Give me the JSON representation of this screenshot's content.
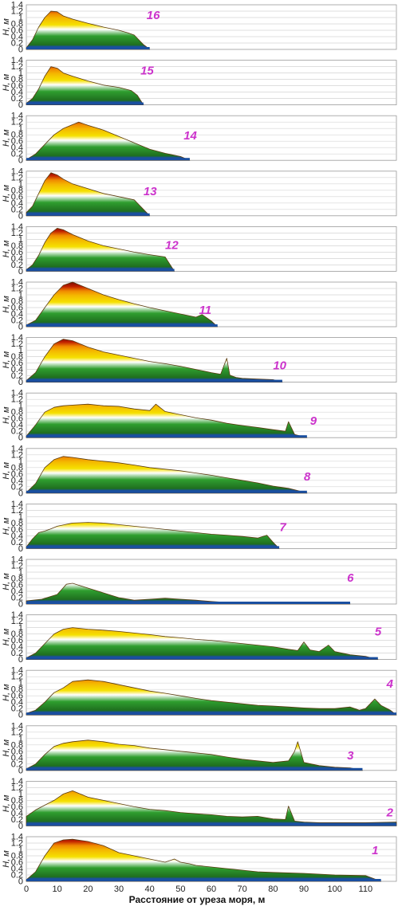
{
  "figure": {
    "x_axis_title": "Расстояние от уреза моря, м",
    "y_axis_title": "H, м",
    "label_color": "#cc33cc",
    "fill_colors": {
      "base_blue": "#1a4fa0",
      "dark_green": "#1f6e1f",
      "green": "#2f9e2f",
      "light_green": "#9fd64f",
      "yellow": "#f5e000",
      "orange": "#f08a00",
      "red": "#c02000",
      "dark_red": "#7a0a00",
      "outline": "#5a3a10"
    }
  },
  "chart_data": {
    "type": "area",
    "x_ticks": [
      "0",
      "10",
      "20",
      "30",
      "40",
      "50",
      "60",
      "70",
      "80",
      "90",
      "100",
      "110"
    ],
    "y_ticks": [
      "0",
      "0.2",
      "0.4",
      "0.6",
      "0.8",
      "1",
      "1.2",
      "1.4"
    ],
    "xlim": [
      0,
      120
    ],
    "ylim": [
      0,
      1.4
    ],
    "grid": true,
    "profiles": [
      {
        "label": "16",
        "x": [
          0,
          2,
          4,
          6,
          8,
          10,
          12,
          15,
          20,
          25,
          30,
          33,
          35,
          38,
          40
        ],
        "h": [
          0.05,
          0.3,
          0.7,
          1.0,
          1.2,
          1.18,
          1.05,
          0.95,
          0.82,
          0.7,
          0.6,
          0.52,
          0.45,
          0.15,
          0.0
        ]
      },
      {
        "label": "15",
        "x": [
          0,
          2,
          4,
          6,
          8,
          10,
          12,
          15,
          20,
          25,
          30,
          34,
          36,
          38
        ],
        "h": [
          0.05,
          0.2,
          0.5,
          0.9,
          1.2,
          1.15,
          1.0,
          0.9,
          0.75,
          0.62,
          0.55,
          0.45,
          0.3,
          0.0
        ]
      },
      {
        "label": "14",
        "x": [
          0,
          3,
          6,
          9,
          12,
          15,
          17,
          20,
          25,
          30,
          35,
          40,
          45,
          50,
          53
        ],
        "h": [
          0.02,
          0.2,
          0.5,
          0.8,
          1.0,
          1.12,
          1.2,
          1.1,
          0.95,
          0.75,
          0.55,
          0.35,
          0.22,
          0.12,
          0.0
        ]
      },
      {
        "label": "13",
        "x": [
          0,
          2,
          4,
          6,
          8,
          10,
          12,
          15,
          20,
          25,
          30,
          35,
          40
        ],
        "h": [
          0.1,
          0.3,
          0.7,
          1.1,
          1.35,
          1.28,
          1.15,
          1.0,
          0.85,
          0.7,
          0.6,
          0.5,
          0.0
        ]
      },
      {
        "label": "12",
        "x": [
          0,
          2,
          4,
          6,
          8,
          10,
          12,
          15,
          20,
          25,
          30,
          35,
          40,
          45,
          48
        ],
        "h": [
          0.05,
          0.2,
          0.5,
          0.9,
          1.2,
          1.35,
          1.3,
          1.15,
          0.95,
          0.8,
          0.7,
          0.6,
          0.52,
          0.45,
          0.0
        ]
      },
      {
        "label": "11",
        "x": [
          0,
          3,
          6,
          9,
          12,
          15,
          20,
          25,
          30,
          35,
          40,
          45,
          50,
          55,
          57,
          60,
          62
        ],
        "h": [
          0.05,
          0.2,
          0.6,
          1.0,
          1.3,
          1.4,
          1.2,
          1.0,
          0.85,
          0.72,
          0.6,
          0.5,
          0.4,
          0.3,
          0.38,
          0.18,
          0.0
        ]
      },
      {
        "label": "10",
        "x": [
          0,
          3,
          6,
          9,
          12,
          15,
          20,
          25,
          30,
          35,
          40,
          45,
          50,
          55,
          60,
          63,
          65,
          66,
          68,
          70,
          75,
          80,
          83
        ],
        "h": [
          0.05,
          0.3,
          0.8,
          1.2,
          1.35,
          1.3,
          1.1,
          0.95,
          0.85,
          0.75,
          0.65,
          0.58,
          0.5,
          0.4,
          0.3,
          0.25,
          0.75,
          0.22,
          0.15,
          0.12,
          0.1,
          0.08,
          0.0
        ]
      },
      {
        "label": "9",
        "x": [
          0,
          3,
          6,
          9,
          12,
          15,
          20,
          25,
          30,
          35,
          40,
          42,
          45,
          50,
          55,
          60,
          65,
          70,
          75,
          80,
          84,
          85,
          87,
          91
        ],
        "h": [
          0.05,
          0.4,
          0.8,
          0.95,
          1.0,
          1.02,
          1.05,
          1.0,
          0.98,
          0.9,
          0.85,
          1.05,
          0.82,
          0.72,
          0.62,
          0.55,
          0.45,
          0.38,
          0.32,
          0.25,
          0.2,
          0.5,
          0.1,
          0.0
        ]
      },
      {
        "label": "8",
        "x": [
          0,
          3,
          6,
          9,
          12,
          15,
          20,
          25,
          30,
          35,
          40,
          45,
          50,
          55,
          60,
          65,
          70,
          75,
          80,
          85,
          88,
          91
        ],
        "h": [
          0.02,
          0.3,
          0.8,
          1.05,
          1.15,
          1.12,
          1.05,
          1.0,
          0.95,
          0.88,
          0.8,
          0.75,
          0.7,
          0.63,
          0.56,
          0.48,
          0.4,
          0.32,
          0.22,
          0.15,
          0.08,
          0.0
        ]
      },
      {
        "label": "7",
        "x": [
          0,
          2,
          4,
          6,
          8,
          10,
          15,
          20,
          25,
          30,
          35,
          40,
          45,
          50,
          55,
          60,
          65,
          70,
          75,
          78,
          80,
          82
        ],
        "h": [
          0.05,
          0.3,
          0.5,
          0.55,
          0.62,
          0.7,
          0.8,
          0.82,
          0.8,
          0.75,
          0.7,
          0.65,
          0.6,
          0.55,
          0.5,
          0.45,
          0.42,
          0.38,
          0.33,
          0.42,
          0.2,
          0.0
        ]
      },
      {
        "label": "6",
        "x": [
          0,
          5,
          10,
          13,
          15,
          20,
          25,
          30,
          35,
          40,
          45,
          50,
          55,
          60,
          65,
          70,
          80,
          90,
          100,
          105
        ],
        "h": [
          0.1,
          0.15,
          0.3,
          0.62,
          0.65,
          0.5,
          0.35,
          0.2,
          0.12,
          0.15,
          0.18,
          0.15,
          0.12,
          0.08,
          0.05,
          0.05,
          0.04,
          0.05,
          0.05,
          0.0
        ]
      },
      {
        "label": "5",
        "x": [
          0,
          3,
          6,
          9,
          12,
          15,
          20,
          25,
          30,
          35,
          40,
          45,
          50,
          55,
          60,
          65,
          70,
          75,
          80,
          85,
          88,
          90,
          92,
          95,
          98,
          100,
          105,
          110,
          114
        ],
        "h": [
          0.05,
          0.2,
          0.5,
          0.8,
          0.95,
          1.0,
          0.95,
          0.92,
          0.88,
          0.83,
          0.78,
          0.72,
          0.68,
          0.63,
          0.6,
          0.55,
          0.5,
          0.45,
          0.4,
          0.32,
          0.28,
          0.55,
          0.3,
          0.25,
          0.45,
          0.25,
          0.15,
          0.1,
          0.0
        ]
      },
      {
        "label": "4",
        "x": [
          0,
          3,
          6,
          9,
          12,
          15,
          20,
          25,
          30,
          35,
          40,
          45,
          50,
          55,
          60,
          65,
          70,
          75,
          80,
          85,
          90,
          95,
          100,
          105,
          108,
          110,
          113,
          115,
          118,
          120
        ],
        "h": [
          0.05,
          0.15,
          0.4,
          0.7,
          0.85,
          1.05,
          1.1,
          1.05,
          0.95,
          0.85,
          0.75,
          0.68,
          0.6,
          0.52,
          0.45,
          0.4,
          0.35,
          0.3,
          0.28,
          0.25,
          0.22,
          0.2,
          0.2,
          0.25,
          0.15,
          0.2,
          0.5,
          0.3,
          0.15,
          0.0
        ]
      },
      {
        "label": "3",
        "x": [
          0,
          3,
          6,
          9,
          12,
          15,
          20,
          25,
          30,
          35,
          40,
          45,
          50,
          55,
          60,
          65,
          70,
          75,
          80,
          85,
          87,
          88,
          90,
          95,
          100,
          105,
          109
        ],
        "h": [
          0.05,
          0.2,
          0.5,
          0.75,
          0.85,
          0.9,
          0.95,
          0.9,
          0.82,
          0.78,
          0.7,
          0.65,
          0.6,
          0.55,
          0.5,
          0.42,
          0.35,
          0.3,
          0.25,
          0.3,
          0.6,
          0.9,
          0.25,
          0.15,
          0.1,
          0.08,
          0.0
        ]
      },
      {
        "label": "2",
        "x": [
          0,
          3,
          6,
          9,
          12,
          15,
          20,
          25,
          30,
          35,
          40,
          45,
          50,
          55,
          60,
          65,
          70,
          75,
          80,
          84,
          85,
          87,
          90,
          95,
          100,
          110,
          120
        ],
        "h": [
          0.3,
          0.5,
          0.65,
          0.8,
          1.0,
          1.1,
          0.9,
          0.8,
          0.7,
          0.6,
          0.52,
          0.48,
          0.42,
          0.38,
          0.35,
          0.3,
          0.28,
          0.3,
          0.22,
          0.2,
          0.62,
          0.15,
          0.12,
          0.1,
          0.1,
          0.1,
          0.12
        ]
      },
      {
        "label": "1",
        "x": [
          0,
          3,
          6,
          9,
          12,
          15,
          20,
          25,
          30,
          35,
          40,
          45,
          48,
          50,
          53,
          55,
          60,
          65,
          70,
          75,
          80,
          90,
          100,
          110,
          115
        ],
        "h": [
          0.05,
          0.3,
          0.8,
          1.2,
          1.3,
          1.32,
          1.25,
          1.12,
          0.9,
          0.8,
          0.7,
          0.6,
          0.7,
          0.6,
          0.55,
          0.5,
          0.45,
          0.4,
          0.35,
          0.3,
          0.28,
          0.25,
          0.2,
          0.18,
          0.0
        ]
      }
    ]
  }
}
